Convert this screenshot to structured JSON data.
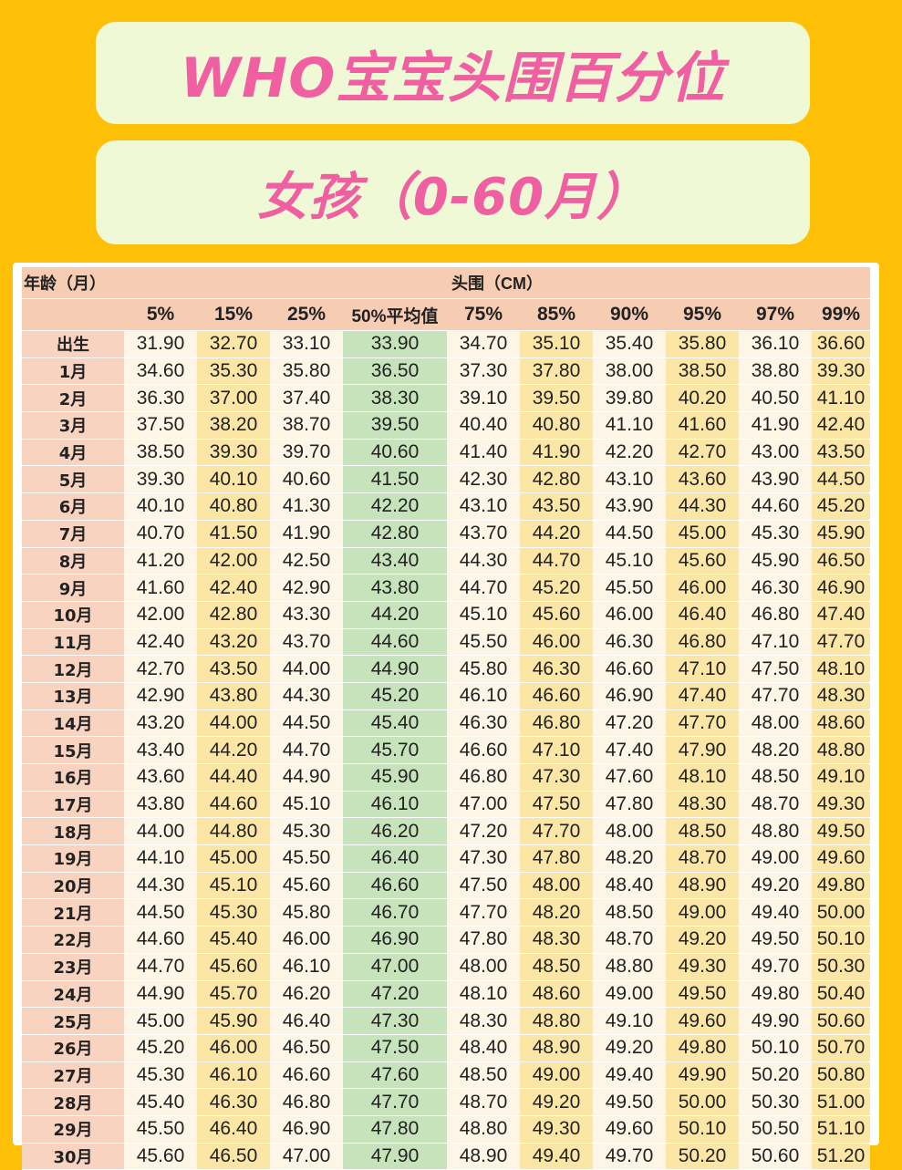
{
  "header": {
    "title": "WHO宝宝头围百分位",
    "subtitle": "女孩（0-60月）"
  },
  "table": {
    "age_header": "年龄（月）",
    "group_header": "头围（CM）",
    "columns": [
      "5%",
      "15%",
      "25%",
      "50%平均值",
      "75%",
      "85%",
      "90%",
      "95%",
      "97%",
      "99%"
    ],
    "rows": [
      {
        "age": "出生",
        "values": [
          "31.90",
          "32.70",
          "33.10",
          "33.90",
          "34.70",
          "35.10",
          "35.40",
          "35.80",
          "36.10",
          "36.60"
        ]
      },
      {
        "age": "1月",
        "values": [
          "34.60",
          "35.30",
          "35.80",
          "36.50",
          "37.30",
          "37.80",
          "38.00",
          "38.50",
          "38.80",
          "39.30"
        ]
      },
      {
        "age": "2月",
        "values": [
          "36.30",
          "37.00",
          "37.40",
          "38.30",
          "39.10",
          "39.50",
          "39.80",
          "40.20",
          "40.50",
          "41.10"
        ]
      },
      {
        "age": "3月",
        "values": [
          "37.50",
          "38.20",
          "38.70",
          "39.50",
          "40.40",
          "40.80",
          "41.10",
          "41.60",
          "41.90",
          "42.40"
        ]
      },
      {
        "age": "4月",
        "values": [
          "38.50",
          "39.30",
          "39.70",
          "40.60",
          "41.40",
          "41.90",
          "42.20",
          "42.70",
          "43.00",
          "43.50"
        ]
      },
      {
        "age": "5月",
        "values": [
          "39.30",
          "40.10",
          "40.60",
          "41.50",
          "42.30",
          "42.80",
          "43.10",
          "43.60",
          "43.90",
          "44.50"
        ]
      },
      {
        "age": "6月",
        "values": [
          "40.10",
          "40.80",
          "41.30",
          "42.20",
          "43.10",
          "43.50",
          "43.90",
          "44.30",
          "44.60",
          "45.20"
        ]
      },
      {
        "age": "7月",
        "values": [
          "40.70",
          "41.50",
          "41.90",
          "42.80",
          "43.70",
          "44.20",
          "44.50",
          "45.00",
          "45.30",
          "45.90"
        ]
      },
      {
        "age": "8月",
        "values": [
          "41.20",
          "42.00",
          "42.50",
          "43.40",
          "44.30",
          "44.70",
          "45.10",
          "45.60",
          "45.90",
          "46.50"
        ]
      },
      {
        "age": "9月",
        "values": [
          "41.60",
          "42.40",
          "42.90",
          "43.80",
          "44.70",
          "45.20",
          "45.50",
          "46.00",
          "46.30",
          "46.90"
        ]
      },
      {
        "age": "10月",
        "values": [
          "42.00",
          "42.80",
          "43.30",
          "44.20",
          "45.10",
          "45.60",
          "46.00",
          "46.40",
          "46.80",
          "47.40"
        ]
      },
      {
        "age": "11月",
        "values": [
          "42.40",
          "43.20",
          "43.70",
          "44.60",
          "45.50",
          "46.00",
          "46.30",
          "46.80",
          "47.10",
          "47.70"
        ]
      },
      {
        "age": "12月",
        "values": [
          "42.70",
          "43.50",
          "44.00",
          "44.90",
          "45.80",
          "46.30",
          "46.60",
          "47.10",
          "47.50",
          "48.10"
        ]
      },
      {
        "age": "13月",
        "values": [
          "42.90",
          "43.80",
          "44.30",
          "45.20",
          "46.10",
          "46.60",
          "46.90",
          "47.40",
          "47.70",
          "48.30"
        ]
      },
      {
        "age": "14月",
        "values": [
          "43.20",
          "44.00",
          "44.50",
          "45.40",
          "46.30",
          "46.80",
          "47.20",
          "47.70",
          "48.00",
          "48.60"
        ]
      },
      {
        "age": "15月",
        "values": [
          "43.40",
          "44.20",
          "44.70",
          "45.70",
          "46.60",
          "47.10",
          "47.40",
          "47.90",
          "48.20",
          "48.80"
        ]
      },
      {
        "age": "16月",
        "values": [
          "43.60",
          "44.40",
          "44.90",
          "45.90",
          "46.80",
          "47.30",
          "47.60",
          "48.10",
          "48.50",
          "49.10"
        ]
      },
      {
        "age": "17月",
        "values": [
          "43.80",
          "44.60",
          "45.10",
          "46.10",
          "47.00",
          "47.50",
          "47.80",
          "48.30",
          "48.70",
          "49.30"
        ]
      },
      {
        "age": "18月",
        "values": [
          "44.00",
          "44.80",
          "45.30",
          "46.20",
          "47.20",
          "47.70",
          "48.00",
          "48.50",
          "48.80",
          "49.50"
        ]
      },
      {
        "age": "19月",
        "values": [
          "44.10",
          "45.00",
          "45.50",
          "46.40",
          "47.30",
          "47.80",
          "48.20",
          "48.70",
          "49.00",
          "49.60"
        ]
      },
      {
        "age": "20月",
        "values": [
          "44.30",
          "45.10",
          "45.60",
          "46.60",
          "47.50",
          "48.00",
          "48.40",
          "48.90",
          "49.20",
          "49.80"
        ]
      },
      {
        "age": "21月",
        "values": [
          "44.50",
          "45.30",
          "45.80",
          "46.70",
          "47.70",
          "48.20",
          "48.50",
          "49.00",
          "49.40",
          "50.00"
        ]
      },
      {
        "age": "22月",
        "values": [
          "44.60",
          "45.40",
          "46.00",
          "46.90",
          "47.80",
          "48.30",
          "48.70",
          "49.20",
          "49.50",
          "50.10"
        ]
      },
      {
        "age": "23月",
        "values": [
          "44.70",
          "45.60",
          "46.10",
          "47.00",
          "48.00",
          "48.50",
          "48.80",
          "49.30",
          "49.70",
          "50.30"
        ]
      },
      {
        "age": "24月",
        "values": [
          "44.90",
          "45.70",
          "46.20",
          "47.20",
          "48.10",
          "48.60",
          "49.00",
          "49.50",
          "49.80",
          "50.40"
        ]
      },
      {
        "age": "25月",
        "values": [
          "45.00",
          "45.90",
          "46.40",
          "47.30",
          "48.30",
          "48.80",
          "49.10",
          "49.60",
          "49.90",
          "50.60"
        ]
      },
      {
        "age": "26月",
        "values": [
          "45.20",
          "46.00",
          "46.50",
          "47.50",
          "48.40",
          "48.90",
          "49.20",
          "49.80",
          "50.10",
          "50.70"
        ]
      },
      {
        "age": "27月",
        "values": [
          "45.30",
          "46.10",
          "46.60",
          "47.60",
          "48.50",
          "49.00",
          "49.40",
          "49.90",
          "50.20",
          "50.80"
        ]
      },
      {
        "age": "28月",
        "values": [
          "45.40",
          "46.30",
          "46.80",
          "47.70",
          "48.70",
          "49.20",
          "49.50",
          "50.00",
          "50.30",
          "51.00"
        ]
      },
      {
        "age": "29月",
        "values": [
          "45.50",
          "46.40",
          "46.90",
          "47.80",
          "48.80",
          "49.30",
          "49.60",
          "50.10",
          "50.50",
          "51.10"
        ]
      },
      {
        "age": "30月",
        "values": [
          "45.60",
          "46.50",
          "47.00",
          "47.90",
          "48.90",
          "49.40",
          "49.70",
          "50.20",
          "50.60",
          "51.20"
        ]
      }
    ]
  },
  "colors": {
    "background": "#fec006",
    "banner_bg": "#f0f9d6",
    "title_pink": "#ef5fa2",
    "header_salmon": "#f6ccb3",
    "cell_cream": "#fdf6e7",
    "cell_yellow": "#fbe6a6",
    "median_green": "#c7e3bc"
  }
}
